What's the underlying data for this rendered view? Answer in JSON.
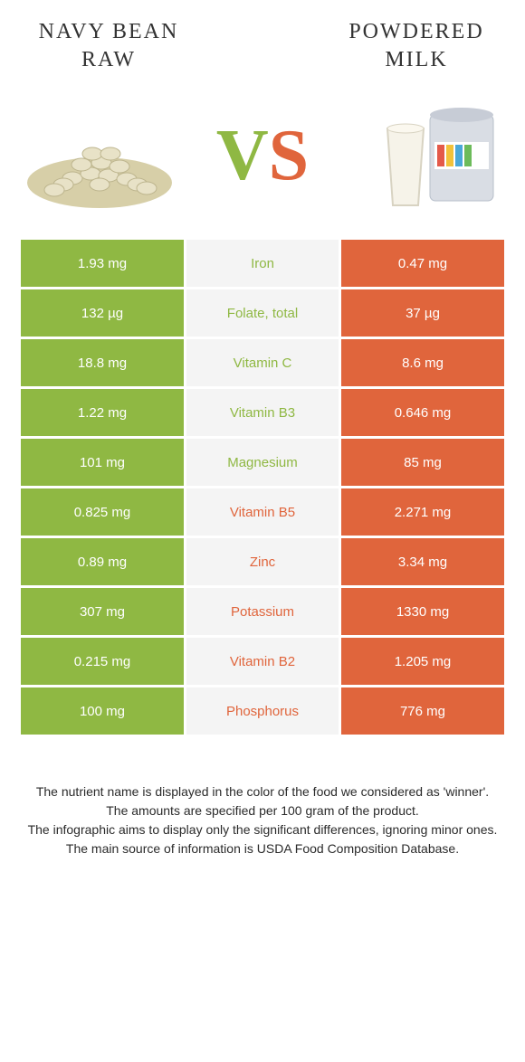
{
  "colors": {
    "green": "#8fb843",
    "orange": "#e0653c",
    "neutral_bg": "#f4f4f4",
    "title_text": "#333333",
    "footer_text": "#2a2a2a"
  },
  "titles": {
    "left": "Navy bean raw",
    "right": "Powdered milk"
  },
  "vs": {
    "v": "V",
    "s": "S"
  },
  "rows": [
    {
      "nutrient": "Iron",
      "left": "1.93 mg",
      "right": "0.47 mg",
      "winner": "left"
    },
    {
      "nutrient": "Folate, total",
      "left": "132 µg",
      "right": "37 µg",
      "winner": "left"
    },
    {
      "nutrient": "Vitamin C",
      "left": "18.8 mg",
      "right": "8.6 mg",
      "winner": "left"
    },
    {
      "nutrient": "Vitamin B3",
      "left": "1.22 mg",
      "right": "0.646 mg",
      "winner": "left"
    },
    {
      "nutrient": "Magnesium",
      "left": "101 mg",
      "right": "85 mg",
      "winner": "left"
    },
    {
      "nutrient": "Vitamin B5",
      "left": "0.825 mg",
      "right": "2.271 mg",
      "winner": "right"
    },
    {
      "nutrient": "Zinc",
      "left": "0.89 mg",
      "right": "3.34 mg",
      "winner": "right"
    },
    {
      "nutrient": "Potassium",
      "left": "307 mg",
      "right": "1330 mg",
      "winner": "right"
    },
    {
      "nutrient": "Vitamin B2",
      "left": "0.215 mg",
      "right": "1.205 mg",
      "winner": "right"
    },
    {
      "nutrient": "Phosphorus",
      "left": "100 mg",
      "right": "776 mg",
      "winner": "right"
    }
  ],
  "footer": {
    "l1": "The nutrient name is displayed in the color of the food we considered as 'winner'.",
    "l2": "The amounts are specified per 100 gram of the product.",
    "l3": "The infographic aims to display only the significant differences, ignoring minor ones.",
    "l4": "The main source of information is USDA Food Composition Database."
  }
}
